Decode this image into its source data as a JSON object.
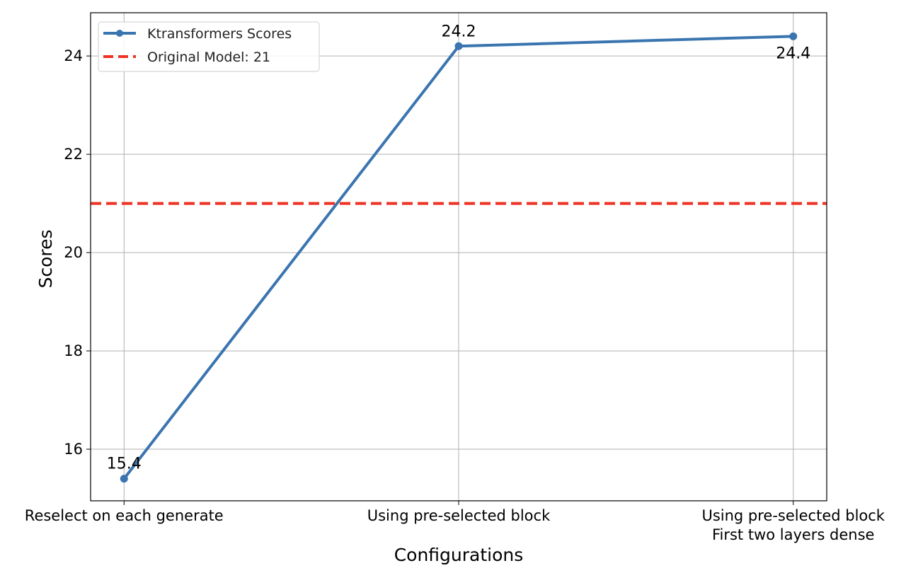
{
  "chart_data": {
    "type": "line",
    "title": "",
    "xlabel": "Configurations",
    "ylabel": "Scores",
    "categories": [
      "Reselect on each generate",
      "Using pre-selected block",
      "Using pre-selected block\nFirst two layers dense"
    ],
    "series": [
      {
        "name": "Ktransformers Scores",
        "values": [
          15.4,
          24.2,
          24.4
        ],
        "color": "#3b75af",
        "style": "solid-with-markers"
      }
    ],
    "data_labels": [
      "15.4",
      "24.2",
      "24.4"
    ],
    "reference_lines": [
      {
        "name": "Original Model: 21",
        "value": 21,
        "color": "#ee3224",
        "style": "dashed"
      }
    ],
    "yticks": [
      16,
      18,
      20,
      22,
      24
    ],
    "ylim": [
      14.95,
      24.88
    ],
    "grid": true,
    "legend_position": "top-left"
  }
}
